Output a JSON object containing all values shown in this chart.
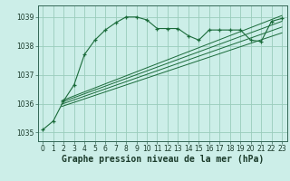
{
  "title": "Graphe pression niveau de la mer (hPa)",
  "bg_color": "#cceee8",
  "grid_color": "#99ccbb",
  "line_color": "#1a6b3a",
  "xlim": [
    -0.5,
    23.5
  ],
  "ylim": [
    1034.7,
    1039.4
  ],
  "yticks": [
    1035,
    1036,
    1037,
    1038,
    1039
  ],
  "xticks": [
    0,
    1,
    2,
    3,
    4,
    5,
    6,
    7,
    8,
    9,
    10,
    11,
    12,
    13,
    14,
    15,
    16,
    17,
    18,
    19,
    20,
    21,
    22,
    23
  ],
  "main_series": {
    "x": [
      0,
      1,
      2,
      3,
      4,
      5,
      6,
      7,
      8,
      9,
      10,
      11,
      12,
      13,
      14,
      15,
      16,
      17,
      18,
      19,
      20,
      21,
      22,
      23
    ],
    "y": [
      1035.1,
      1035.4,
      1036.1,
      1036.65,
      1037.7,
      1038.2,
      1038.55,
      1038.8,
      1039.0,
      1039.0,
      1038.9,
      1038.6,
      1038.6,
      1038.6,
      1038.35,
      1038.2,
      1038.55,
      1038.55,
      1038.55,
      1038.55,
      1038.2,
      1038.15,
      1038.85,
      1038.95
    ]
  },
  "linear_lines": [
    {
      "x0": 1.8,
      "y0": 1036.1,
      "x1": 23,
      "y1": 1039.05
    },
    {
      "x0": 1.8,
      "y0": 1036.05,
      "x1": 23,
      "y1": 1038.85
    },
    {
      "x0": 1.8,
      "y0": 1035.98,
      "x1": 23,
      "y1": 1038.65
    },
    {
      "x0": 1.8,
      "y0": 1035.9,
      "x1": 23,
      "y1": 1038.45
    }
  ],
  "title_fontsize": 7,
  "tick_fontsize": 5.5
}
